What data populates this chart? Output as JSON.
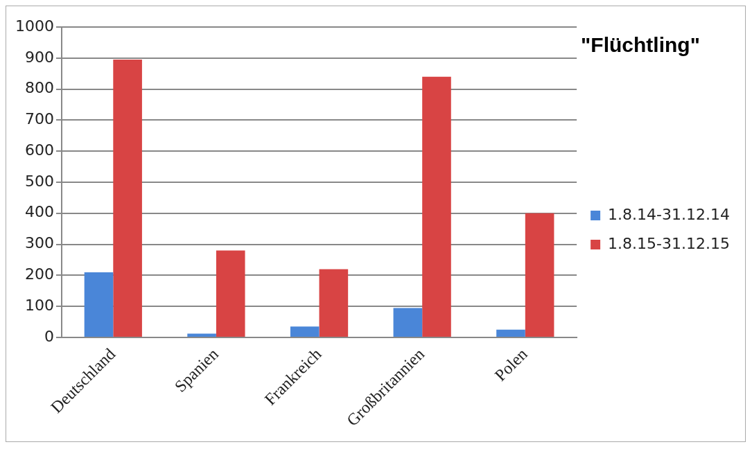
{
  "chart_data": {
    "type": "bar",
    "title": "\"Flüchtling\"",
    "categories": [
      "Deutschland",
      "Spanien",
      "Frankreich",
      "Großbritannien",
      "Polen"
    ],
    "series": [
      {
        "name": "1.8.14-31.12.14",
        "color": "#4a86d8",
        "values": [
          210,
          12,
          35,
          95,
          25
        ]
      },
      {
        "name": "1.8.15-31.12.15",
        "color": "#d84444",
        "values": [
          895,
          280,
          220,
          840,
          400
        ]
      }
    ],
    "ylim": [
      0,
      1000
    ],
    "yticks": [
      0,
      100,
      200,
      300,
      400,
      500,
      600,
      700,
      800,
      900,
      1000
    ],
    "grid": "y",
    "legend": "right"
  }
}
